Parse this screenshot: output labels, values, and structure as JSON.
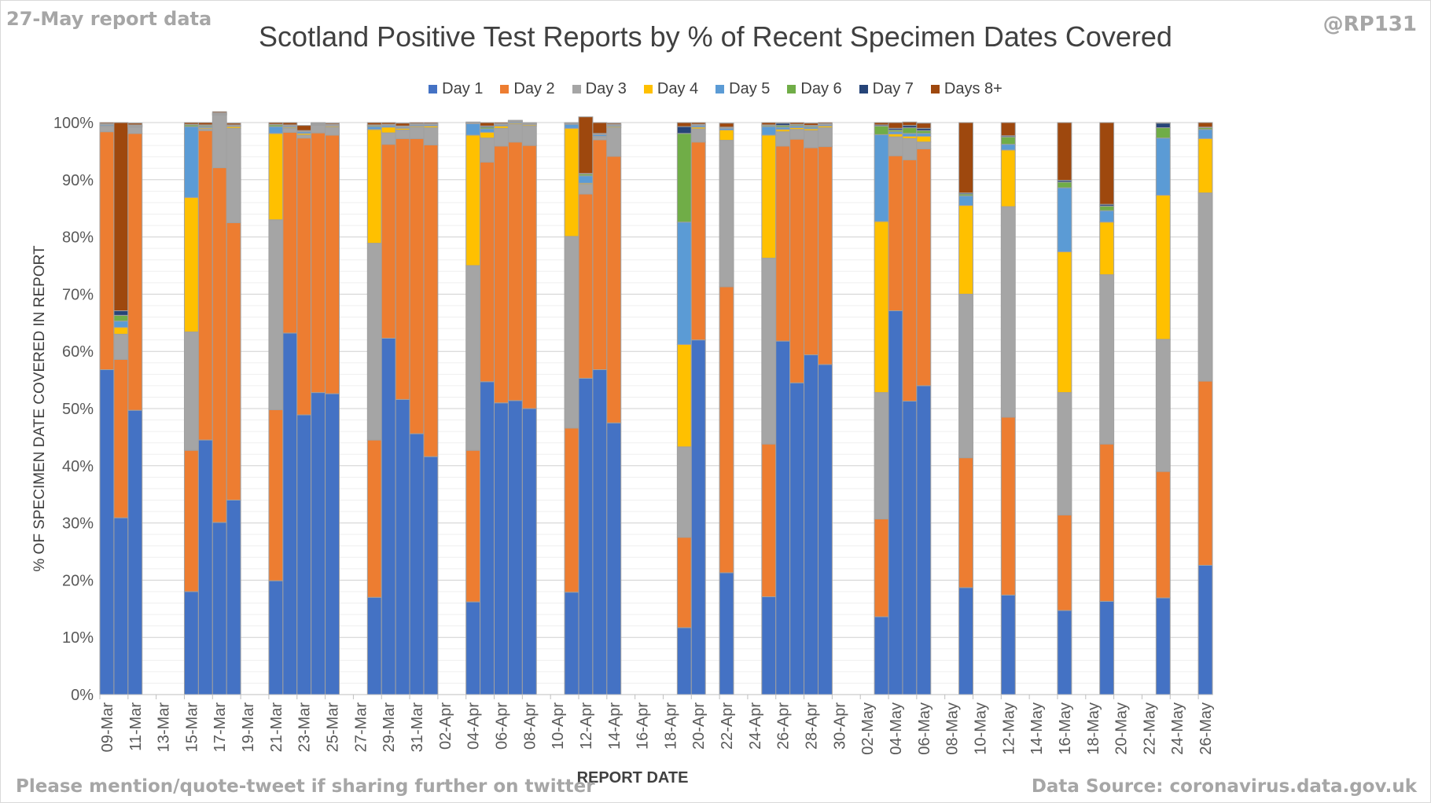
{
  "header": {
    "report_date_label": "27-May report data",
    "handle": "@RP131"
  },
  "footer": {
    "left_note": "Please mention/quote-tweet if sharing further on twitter",
    "source": "Data Source: coronavirus.data.gov.uk"
  },
  "colors": {
    "Day 1": "#4472C4",
    "Day 2": "#ED7D31",
    "Day 3": "#A5A5A5",
    "Day 4": "#FFC000",
    "Day 5": "#5B9BD5",
    "Day 6": "#70AD47",
    "Day 7": "#264478",
    "Days 8+": "#9E480E"
  },
  "chart_data": {
    "type": "bar",
    "stacked": true,
    "title": "Scotland Positive Test Reports by % of Recent Specimen Dates Covered",
    "xlabel": "REPORT DATE",
    "ylabel": "% OF SPECIMEN DATE COVERED IN REPORT",
    "ylim": [
      0,
      100
    ],
    "y_ticks": [
      "0%",
      "10%",
      "20%",
      "30%",
      "40%",
      "50%",
      "60%",
      "70%",
      "80%",
      "90%",
      "100%"
    ],
    "grid": true,
    "legend_position": "top",
    "categories": [
      "09-Mar",
      "10-Mar",
      "11-Mar",
      "12-Mar",
      "13-Mar",
      "14-Mar",
      "15-Mar",
      "16-Mar",
      "17-Mar",
      "18-Mar",
      "19-Mar",
      "20-Mar",
      "21-Mar",
      "22-Mar",
      "23-Mar",
      "24-Mar",
      "25-Mar",
      "26-Mar",
      "27-Mar",
      "28-Mar",
      "29-Mar",
      "30-Mar",
      "31-Mar",
      "01-Apr",
      "02-Apr",
      "03-Apr",
      "04-Apr",
      "05-Apr",
      "06-Apr",
      "07-Apr",
      "08-Apr",
      "09-Apr",
      "10-Apr",
      "11-Apr",
      "12-Apr",
      "13-Apr",
      "14-Apr",
      "15-Apr",
      "16-Apr",
      "17-Apr",
      "18-Apr",
      "19-Apr",
      "20-Apr",
      "21-Apr",
      "22-Apr",
      "23-Apr",
      "24-Apr",
      "25-Apr",
      "26-Apr",
      "27-Apr",
      "28-Apr",
      "29-Apr",
      "30-Apr",
      "01-May",
      "02-May",
      "03-May",
      "04-May",
      "05-May",
      "06-May",
      "07-May",
      "08-May",
      "09-May",
      "10-May",
      "11-May",
      "12-May",
      "13-May",
      "14-May",
      "15-May",
      "16-May",
      "17-May",
      "18-May",
      "19-May",
      "20-May",
      "21-May",
      "22-May",
      "23-May",
      "24-May",
      "25-May",
      "26-May"
    ],
    "tick_labels": [
      "09-Mar",
      "11-Mar",
      "13-Mar",
      "15-Mar",
      "17-Mar",
      "19-Mar",
      "21-Mar",
      "23-Mar",
      "25-Mar",
      "27-Mar",
      "29-Mar",
      "31-Mar",
      "02-Apr",
      "04-Apr",
      "06-Apr",
      "08-Apr",
      "10-Apr",
      "12-Apr",
      "14-Apr",
      "16-Apr",
      "18-Apr",
      "20-Apr",
      "22-Apr",
      "24-Apr",
      "26-Apr",
      "28-Apr",
      "30-Apr",
      "02-May",
      "04-May",
      "06-May",
      "08-May",
      "10-May",
      "12-May",
      "14-May",
      "16-May",
      "18-May",
      "20-May",
      "22-May",
      "24-May",
      "26-May"
    ],
    "series": [
      {
        "name": "Day 1",
        "values": [
          56.8,
          30.9,
          49.7,
          null,
          null,
          null,
          18.0,
          44.5,
          30.1,
          34.0,
          null,
          null,
          19.9,
          63.2,
          48.9,
          52.8,
          52.6,
          null,
          null,
          17.0,
          62.3,
          51.6,
          45.6,
          41.6,
          null,
          null,
          16.2,
          54.7,
          51.0,
          51.4,
          50.0,
          null,
          null,
          17.9,
          55.3,
          56.8,
          47.5,
          null,
          null,
          null,
          null,
          11.7,
          62.0,
          null,
          21.3,
          null,
          null,
          17.1,
          61.8,
          54.5,
          59.4,
          57.7,
          null,
          null,
          null,
          13.6,
          67.1,
          51.3,
          54.0,
          null,
          null,
          18.7,
          null,
          null,
          17.4,
          null,
          null,
          null,
          14.7,
          null,
          null,
          16.3,
          null,
          null,
          null,
          16.9,
          null,
          null,
          22.6
        ]
      },
      {
        "name": "Day 2",
        "values": [
          41.6,
          27.7,
          48.4,
          null,
          null,
          null,
          24.7,
          54.1,
          62.0,
          48.5,
          null,
          null,
          29.9,
          35.1,
          48.4,
          45.4,
          45.2,
          null,
          null,
          27.5,
          33.9,
          45.6,
          51.6,
          54.5,
          null,
          null,
          26.5,
          38.4,
          44.9,
          45.2,
          46.0,
          null,
          null,
          28.7,
          32.2,
          40.2,
          46.6,
          null,
          null,
          null,
          null,
          15.8,
          34.6,
          null,
          50.0,
          null,
          null,
          26.7,
          34.1,
          42.6,
          36.2,
          38.1,
          null,
          null,
          null,
          17.1,
          27.1,
          42.2,
          41.4,
          null,
          null,
          22.7,
          null,
          null,
          31.1,
          null,
          null,
          null,
          16.7,
          null,
          null,
          27.5,
          null,
          null,
          null,
          22.1,
          null,
          null,
          32.2
        ]
      },
      {
        "name": "Day 3",
        "values": [
          0.9,
          4.4,
          1.1,
          null,
          null,
          null,
          20.7,
          0.3,
          9.2,
          16.5,
          null,
          null,
          33.2,
          0.7,
          0.5,
          1.3,
          1.4,
          null,
          null,
          34.4,
          2.0,
          1.5,
          2.0,
          3.0,
          null,
          null,
          32.3,
          4.2,
          3.1,
          3.1,
          3.4,
          null,
          null,
          33.5,
          1.7,
          0.5,
          5.0,
          null,
          null,
          null,
          null,
          15.8,
          2.3,
          null,
          25.6,
          null,
          null,
          32.5,
          2.5,
          1.7,
          3.0,
          3.3,
          null,
          null,
          null,
          22.1,
          3.3,
          3.7,
          1.2,
          null,
          null,
          28.6,
          null,
          null,
          36.8,
          null,
          null,
          null,
          21.4,
          null,
          null,
          29.6,
          null,
          null,
          null,
          23.1,
          null,
          null,
          32.9
        ]
      },
      {
        "name": "Day 4",
        "values": [
          0.1,
          1.2,
          0.1,
          null,
          null,
          null,
          23.5,
          0.2,
          0.1,
          0.3,
          null,
          null,
          15.1,
          0.2,
          0.3,
          0.1,
          0.2,
          null,
          null,
          19.9,
          1.0,
          0.3,
          0.2,
          0.3,
          null,
          null,
          22.8,
          1.0,
          0.4,
          0.2,
          0.2,
          null,
          null,
          18.9,
          0.2,
          0.1,
          0.2,
          null,
          null,
          null,
          null,
          17.9,
          0.3,
          null,
          1.8,
          null,
          null,
          21.5,
          0.4,
          0.3,
          0.3,
          0.3,
          null,
          null,
          null,
          29.9,
          0.5,
          0.4,
          1.0,
          null,
          null,
          15.5,
          null,
          null,
          9.9,
          null,
          null,
          null,
          24.6,
          null,
          null,
          9.2,
          null,
          null,
          null,
          25.2,
          null,
          null,
          9.5
        ]
      },
      {
        "name": "Day 5",
        "values": [
          0.2,
          1.1,
          0.1,
          null,
          null,
          null,
          12.4,
          0.2,
          0.1,
          0.1,
          null,
          null,
          1.2,
          0.2,
          0.3,
          0.1,
          0.1,
          null,
          null,
          0.5,
          0.3,
          0.2,
          0.2,
          0.2,
          null,
          null,
          2.0,
          0.6,
          0.2,
          0.2,
          0.1,
          null,
          null,
          0.7,
          1.3,
          0.3,
          0.2,
          null,
          null,
          null,
          null,
          21.4,
          0.3,
          null,
          0.3,
          null,
          null,
          1.5,
          0.4,
          0.3,
          0.3,
          0.2,
          null,
          null,
          null,
          15.2,
          0.4,
          0.5,
          0.5,
          null,
          null,
          1.7,
          null,
          null,
          1.0,
          null,
          null,
          null,
          11.2,
          null,
          null,
          2.0,
          null,
          null,
          null,
          10.0,
          null,
          null,
          1.6
        ]
      },
      {
        "name": "Day 6",
        "values": [
          0.1,
          1.0,
          0.1,
          null,
          null,
          null,
          0.3,
          0.2,
          0.1,
          0.1,
          null,
          null,
          0.3,
          0.1,
          0.1,
          0.1,
          0.1,
          null,
          null,
          0.2,
          0.1,
          0.1,
          0.1,
          0.1,
          null,
          null,
          0.1,
          0.3,
          0.1,
          0.1,
          0.1,
          null,
          null,
          0.1,
          0.3,
          0.1,
          0.1,
          null,
          null,
          null,
          null,
          15.5,
          0.1,
          null,
          0.1,
          null,
          null,
          0.2,
          0.3,
          0.2,
          0.2,
          0.1,
          null,
          null,
          null,
          1.5,
          0.3,
          1.0,
          0.5,
          null,
          null,
          0.3,
          null,
          null,
          1.3,
          null,
          null,
          null,
          1.0,
          null,
          null,
          0.8,
          null,
          null,
          null,
          1.8,
          null,
          null,
          0.3
        ]
      },
      {
        "name": "Day 7",
        "values": [
          0.1,
          0.8,
          0.1,
          null,
          null,
          null,
          0.1,
          0.1,
          0.1,
          0.1,
          null,
          null,
          0.1,
          0.1,
          0.1,
          0.1,
          0.1,
          null,
          null,
          0.1,
          0.1,
          0.1,
          0.1,
          0.1,
          null,
          null,
          0.1,
          0.2,
          0.1,
          0.1,
          0.1,
          null,
          null,
          0.1,
          0.1,
          0.1,
          0.1,
          null,
          null,
          null,
          null,
          1.2,
          0.1,
          null,
          0.1,
          null,
          null,
          0.1,
          0.4,
          0.1,
          0.1,
          0.1,
          null,
          null,
          null,
          0.2,
          0.3,
          0.4,
          0.4,
          null,
          null,
          0.2,
          null,
          null,
          0.2,
          null,
          null,
          null,
          0.3,
          null,
          null,
          0.3,
          null,
          null,
          null,
          0.8,
          null,
          null,
          0.1
        ]
      },
      {
        "name": "Days 8+",
        "values": [
          0.2,
          32.9,
          0.3,
          null,
          null,
          null,
          0.3,
          0.4,
          0.2,
          0.3,
          null,
          null,
          0.3,
          0.4,
          0.9,
          0.1,
          0.2,
          null,
          null,
          0.4,
          0.3,
          0.5,
          0.2,
          0.2,
          null,
          null,
          0.1,
          0.6,
          0.2,
          0.1,
          0.1,
          null,
          null,
          0.1,
          9.9,
          1.9,
          0.2,
          null,
          null,
          null,
          null,
          0.7,
          0.3,
          null,
          0.7,
          null,
          null,
          0.4,
          0.1,
          0.3,
          0.4,
          0.2,
          null,
          null,
          null,
          0.4,
          1.0,
          0.6,
          0.9,
          null,
          null,
          12.3,
          null,
          null,
          2.3,
          null,
          null,
          null,
          10.1,
          null,
          null,
          14.3,
          null,
          null,
          null,
          0.1,
          null,
          null,
          0.8
        ]
      }
    ]
  }
}
